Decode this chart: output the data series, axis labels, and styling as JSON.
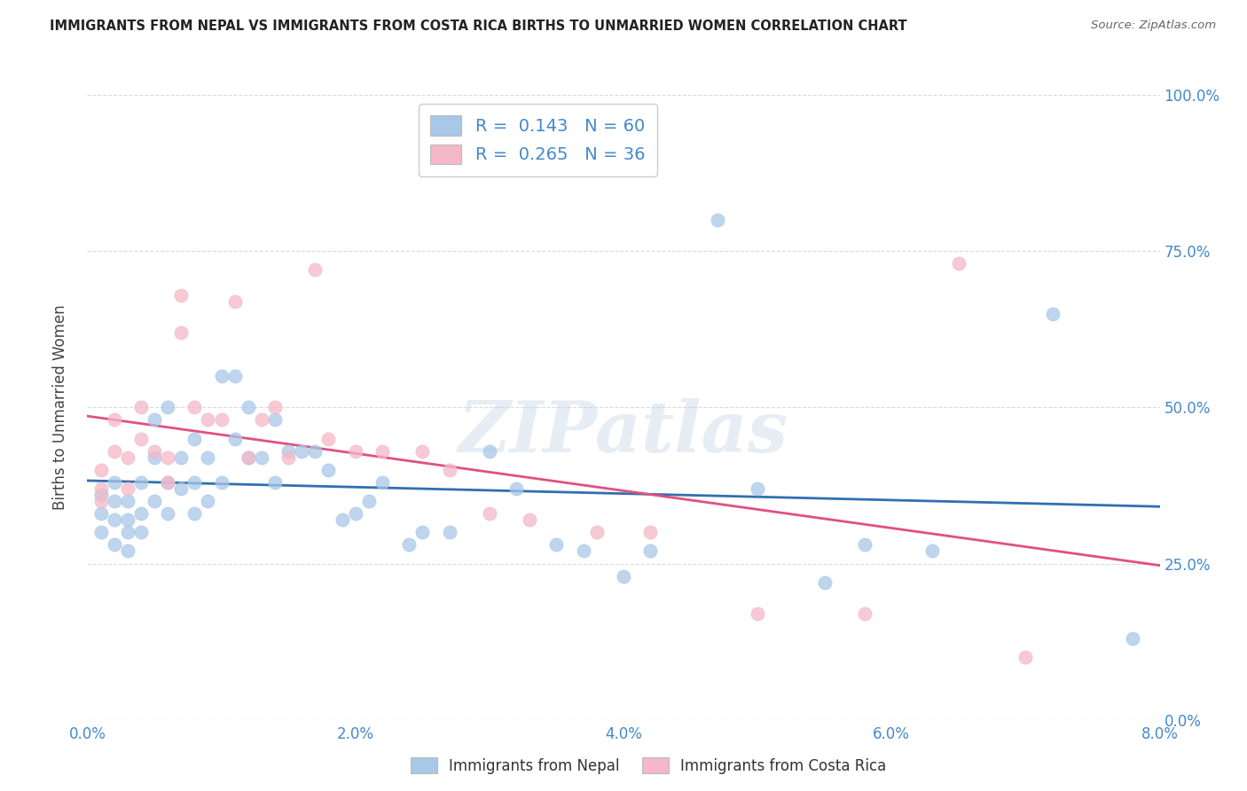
{
  "title": "IMMIGRANTS FROM NEPAL VS IMMIGRANTS FROM COSTA RICA BIRTHS TO UNMARRIED WOMEN CORRELATION CHART",
  "source": "Source: ZipAtlas.com",
  "xlabel_ticks": [
    "0.0%",
    "2.0%",
    "4.0%",
    "6.0%",
    "8.0%"
  ],
  "xlabel_vals": [
    0.0,
    0.02,
    0.04,
    0.06,
    0.08
  ],
  "ylabel": "Births to Unmarried Women",
  "ylabel_right_ticks": [
    "100.0%",
    "75.0%",
    "50.0%",
    "25.0%",
    "0.0%"
  ],
  "ylabel_right_vals": [
    1.0,
    0.75,
    0.5,
    0.25,
    0.0
  ],
  "nepal_R": 0.143,
  "nepal_N": 60,
  "costa_rica_R": 0.265,
  "costa_rica_N": 36,
  "nepal_color": "#a8c8e8",
  "costa_rica_color": "#f4b8c8",
  "trend_nepal_color": "#3070b0",
  "trend_costa_rica_color": "#e05080",
  "watermark_text": "ZIPatlas",
  "nepal_x": [
    0.001,
    0.001,
    0.001,
    0.002,
    0.002,
    0.002,
    0.002,
    0.003,
    0.003,
    0.003,
    0.003,
    0.004,
    0.004,
    0.004,
    0.005,
    0.005,
    0.005,
    0.006,
    0.006,
    0.006,
    0.007,
    0.007,
    0.008,
    0.008,
    0.008,
    0.009,
    0.009,
    0.01,
    0.01,
    0.011,
    0.011,
    0.012,
    0.012,
    0.013,
    0.014,
    0.014,
    0.015,
    0.016,
    0.017,
    0.018,
    0.019,
    0.02,
    0.021,
    0.022,
    0.024,
    0.025,
    0.027,
    0.03,
    0.032,
    0.035,
    0.037,
    0.04,
    0.042,
    0.047,
    0.05,
    0.055,
    0.058,
    0.063,
    0.072,
    0.078
  ],
  "nepal_y": [
    0.36,
    0.33,
    0.3,
    0.38,
    0.35,
    0.32,
    0.28,
    0.35,
    0.32,
    0.3,
    0.27,
    0.38,
    0.33,
    0.3,
    0.48,
    0.42,
    0.35,
    0.5,
    0.38,
    0.33,
    0.42,
    0.37,
    0.45,
    0.38,
    0.33,
    0.42,
    0.35,
    0.55,
    0.38,
    0.55,
    0.45,
    0.5,
    0.42,
    0.42,
    0.48,
    0.38,
    0.43,
    0.43,
    0.43,
    0.4,
    0.32,
    0.33,
    0.35,
    0.38,
    0.28,
    0.3,
    0.3,
    0.43,
    0.37,
    0.28,
    0.27,
    0.23,
    0.27,
    0.8,
    0.37,
    0.22,
    0.28,
    0.27,
    0.65,
    0.13
  ],
  "costa_rica_x": [
    0.001,
    0.001,
    0.001,
    0.002,
    0.002,
    0.003,
    0.003,
    0.004,
    0.004,
    0.005,
    0.006,
    0.006,
    0.007,
    0.007,
    0.008,
    0.009,
    0.01,
    0.011,
    0.012,
    0.013,
    0.014,
    0.015,
    0.017,
    0.018,
    0.02,
    0.022,
    0.025,
    0.027,
    0.03,
    0.033,
    0.038,
    0.042,
    0.05,
    0.058,
    0.065,
    0.07
  ],
  "costa_rica_y": [
    0.4,
    0.37,
    0.35,
    0.48,
    0.43,
    0.42,
    0.37,
    0.5,
    0.45,
    0.43,
    0.42,
    0.38,
    0.68,
    0.62,
    0.5,
    0.48,
    0.48,
    0.67,
    0.42,
    0.48,
    0.5,
    0.42,
    0.72,
    0.45,
    0.43,
    0.43,
    0.43,
    0.4,
    0.33,
    0.32,
    0.3,
    0.3,
    0.17,
    0.17,
    0.73,
    0.1
  ],
  "xlim": [
    0.0,
    0.08
  ],
  "ylim": [
    0.0,
    1.0
  ],
  "background_color": "#ffffff",
  "grid_color": "#d0d0d8"
}
